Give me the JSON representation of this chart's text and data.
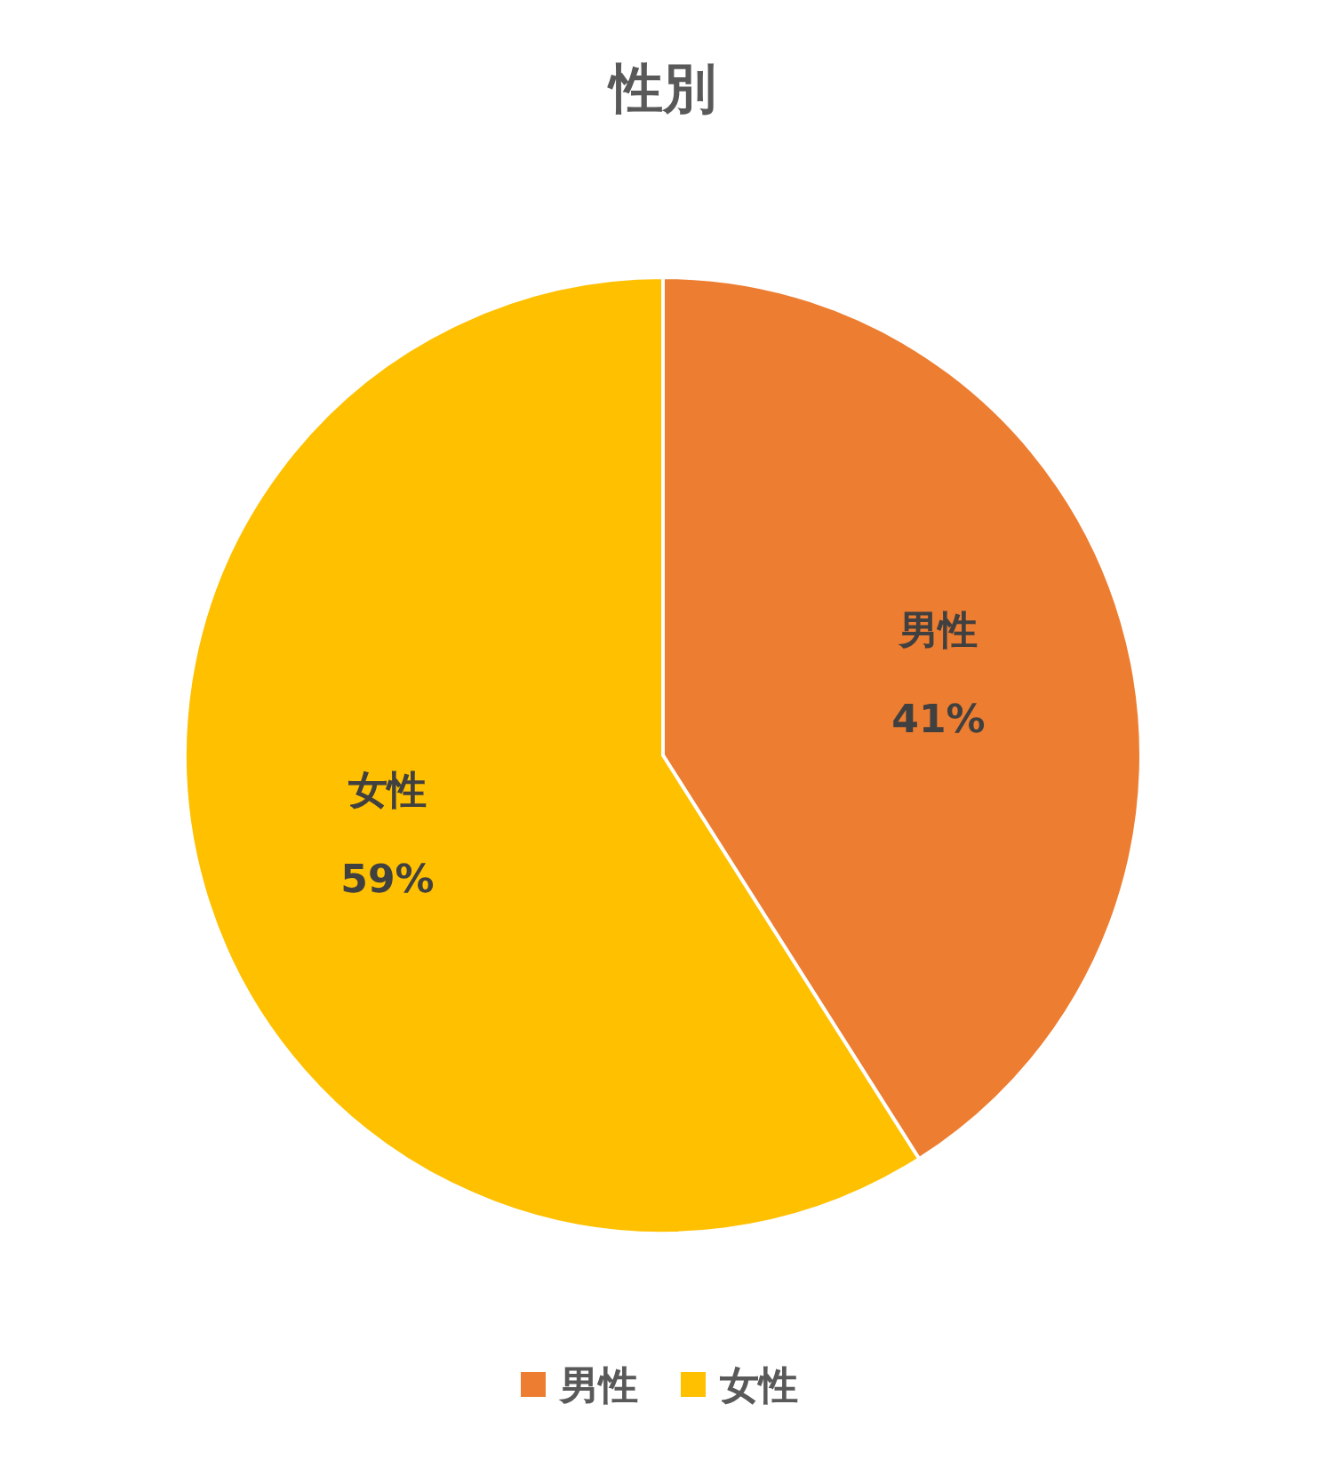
{
  "chart_data": {
    "type": "pie",
    "title": "性別",
    "categories": [
      "男性",
      "女性"
    ],
    "values": [
      41,
      59
    ],
    "colors": [
      "#ed7d31",
      "#ffc000"
    ],
    "value_labels": [
      "41%",
      "59%"
    ],
    "legend": "bottom"
  }
}
